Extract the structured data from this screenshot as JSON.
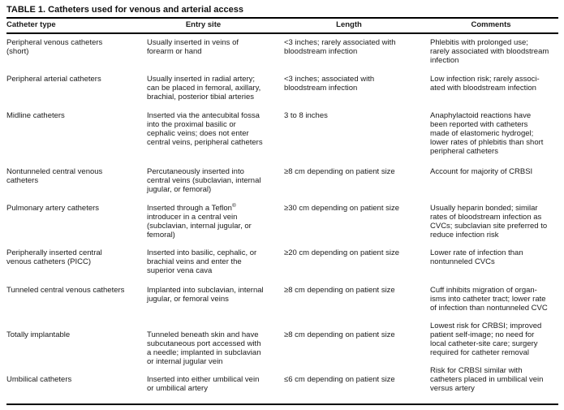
{
  "page": {
    "background": "#ffffff",
    "text_color": "#1a1a1a",
    "rule_color": "#000000"
  },
  "table": {
    "title": "TABLE 1. Catheters used for venous and arterial access",
    "columns": [
      "Catheter type",
      "Entry site",
      "Length",
      "Comments"
    ],
    "rows": [
      {
        "type": "Peripheral venous catheters\n(short)",
        "entry_site": "Usually inserted in veins of\nforearm or hand",
        "length": "<3 inches; rarely associated with\nbloodstream infection",
        "comments": "Phlebitis with prolonged use;\nrarely associated with bloodstream\ninfection"
      },
      {
        "type": "Peripheral arterial catheters",
        "entry_site": "Usually inserted in radial artery;\ncan be placed in femoral, axillary,\nbrachial, posterior tibial arteries",
        "length": "<3 inches; associated with\nbloodstream infection",
        "comments": "Low infection risk; rarely associ-\nated with bloodstream infection"
      },
      {
        "type": "Midline catheters",
        "entry_site": "Inserted via the antecubital fossa\ninto the proximal basilic or\ncephalic veins; does not enter\ncentral veins, peripheral catheters",
        "length": "3 to 8 inches",
        "comments": "Anaphylactoid reactions have\nbeen reported with catheters\nmade of elastomeric hydrogel;\nlower rates of phlebitis than short\nperipheral catheters"
      },
      {
        "type": "Nontunneled central venous\ncatheters",
        "entry_site": "Percutaneously inserted into\ncentral veins (subclavian, internal\njugular, or femoral)",
        "length": "≥8 cm depending on patient size",
        "comments": "Account for majority of CRBSI"
      },
      {
        "type": "Pulmonary artery catheters",
        "entry_site": "Inserted through a Teflon®\nintroducer in a central vein\n(subclavian, internal jugular, or\nfemoral)",
        "length": "≥30 cm depending on patient size",
        "comments": "Usually heparin bonded; similar\nrates of bloodstream infection as\nCVCs; subclavian site preferred to\nreduce infection risk"
      },
      {
        "type": "Peripherally inserted central\nvenous catheters (PICC)",
        "entry_site": "Inserted into basilic, cephalic, or\nbrachial veins and enter the\nsuperior vena cava",
        "length": "≥20 cm depending on patient size",
        "comments": "Lower rate of infection than\nnontunneled CVCs"
      },
      {
        "type": "Tunneled central venous catheters",
        "entry_site": "Implanted into subclavian, internal\njugular, or femoral veins",
        "length": "≥8 cm depending on patient size",
        "comments": "Cuff inhibits migration of organ-\nisms into catheter tract; lower rate\nof infection than nontunneled CVC"
      },
      {
        "type": "Totally implantable",
        "entry_site": "Tunneled beneath skin and have\nsubcutaneous port accessed with\na needle; implanted in subclavian\nor internal jugular vein",
        "length": "≥8 cm depending on patient size",
        "comments": "Lowest risk for CRBSI; improved\npatient self-image; no need for\nlocal catheter-site care; surgery\nrequired for catheter removal"
      },
      {
        "type": "Umbilical catheters",
        "entry_site": "Inserted into either umbilical vein\nor umbilical artery",
        "length": "≤6 cm depending on patient size",
        "comments": "Risk for CRBSI similar with\ncatheters placed in umbilical vein\nversus artery"
      }
    ]
  }
}
